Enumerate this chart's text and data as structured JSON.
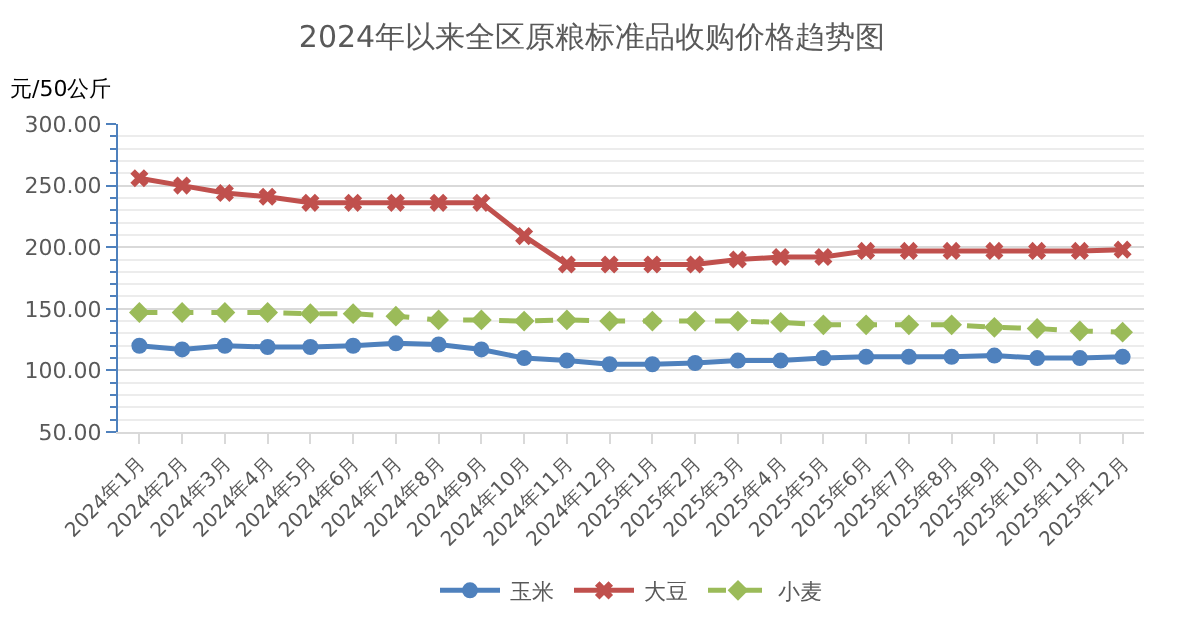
{
  "chart_data": {
    "type": "line",
    "title": "2024年以来全区原粮标准品收购价格趋势图",
    "ylabel": "元/50公斤",
    "categories": [
      "2024年1月",
      "2024年2月",
      "2024年3月",
      "2024年4月",
      "2024年5月",
      "2024年6月",
      "2024年7月",
      "2024年8月",
      "2024年9月",
      "2024年10月",
      "2024年11月",
      "2024年12月",
      "2025年1月",
      "2025年2月",
      "2025年3月",
      "2025年4月",
      "2025年5月",
      "2025年6月",
      "2025年7月",
      "2025年8月",
      "2025年9月",
      "2025年10月",
      "2025年11月",
      "2025年12月"
    ],
    "series": [
      {
        "name": "玉米",
        "color": "#4f81bd",
        "marker": "circle",
        "line_style": "solid",
        "values": [
          120,
          117,
          120,
          119,
          119,
          120,
          122,
          121,
          117,
          110,
          108,
          105,
          105,
          106,
          108,
          108,
          110,
          111,
          111,
          111,
          112,
          110,
          110,
          111
        ]
      },
      {
        "name": "大豆",
        "color": "#c0504d",
        "marker": "cross",
        "line_style": "solid",
        "values": [
          256,
          250,
          244,
          241,
          236,
          236,
          236,
          236,
          236,
          209,
          186,
          186,
          186,
          186,
          190,
          192,
          192,
          197,
          197,
          197,
          197,
          197,
          197,
          198
        ]
      },
      {
        "name": "小麦",
        "color": "#9bbb59",
        "marker": "diamond",
        "line_style": "dashed",
        "values": [
          147,
          147,
          147,
          147,
          146,
          146,
          144,
          141,
          141,
          140,
          141,
          140,
          140,
          140,
          140,
          139,
          137,
          137,
          137,
          137,
          135,
          134,
          132,
          131
        ]
      }
    ],
    "ylim": [
      50,
      300
    ],
    "yticks": [
      {
        "value": 50,
        "label": "50.00"
      },
      {
        "value": 100,
        "label": "100.00"
      },
      {
        "value": 150,
        "label": "150.00"
      },
      {
        "value": 200,
        "label": "200.00"
      },
      {
        "value": 250,
        "label": "250.00"
      },
      {
        "value": 300,
        "label": "300.00"
      }
    ],
    "grid": "y",
    "legend": "bottom"
  }
}
